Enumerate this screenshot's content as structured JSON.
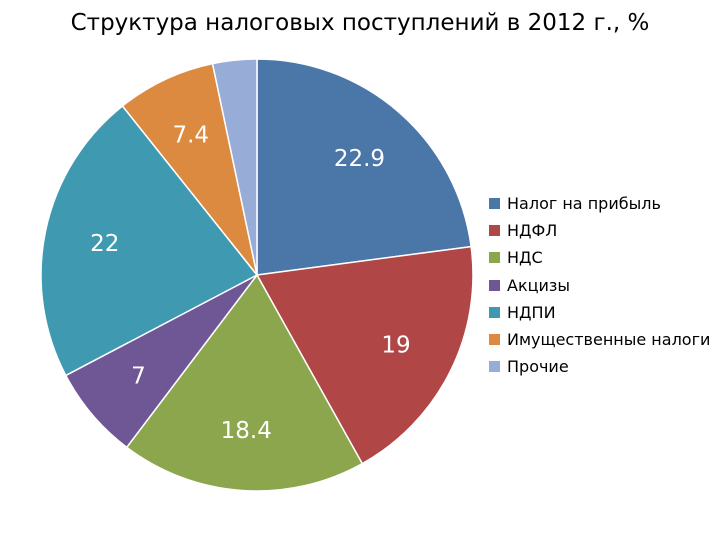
{
  "chart_data": {
    "type": "pie",
    "title": "Структура налоговых поступлений в 2012 г., %",
    "legend_position": "right",
    "slices": [
      {
        "name": "Налог на прибыль",
        "value": 22.9,
        "label": "22.9",
        "color": "#4a76a8"
      },
      {
        "name": "НДФЛ",
        "value": 19,
        "label": "19",
        "color": "#b04645"
      },
      {
        "name": "НДС",
        "value": 18.4,
        "label": "18.4",
        "color": "#8ba64d"
      },
      {
        "name": "Акцизы",
        "value": 7,
        "label": "7",
        "color": "#6f5796"
      },
      {
        "name": "НДПИ",
        "value": 22,
        "label": "22",
        "color": "#3f9ab1"
      },
      {
        "name": "Имущественные налоги",
        "value": 7.4,
        "label": "7.4",
        "color": "#db8a40"
      },
      {
        "name": "Прочие",
        "value": 3.3,
        "label": "",
        "color": "#97add7"
      }
    ]
  }
}
